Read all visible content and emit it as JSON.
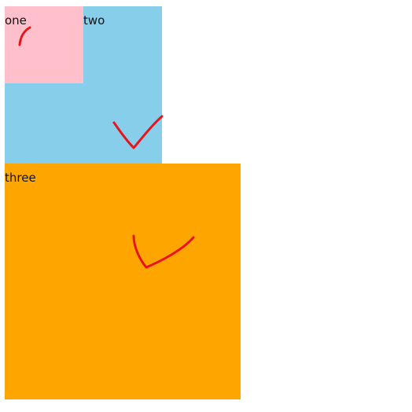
{
  "boxes": {
    "one": {
      "label": "one",
      "color": "#ffc0cb"
    },
    "two": {
      "label": "two",
      "color": "#87ceeb"
    },
    "three": {
      "label": "three",
      "color": "#ffa500"
    }
  },
  "annotation_color": "#e8141c"
}
